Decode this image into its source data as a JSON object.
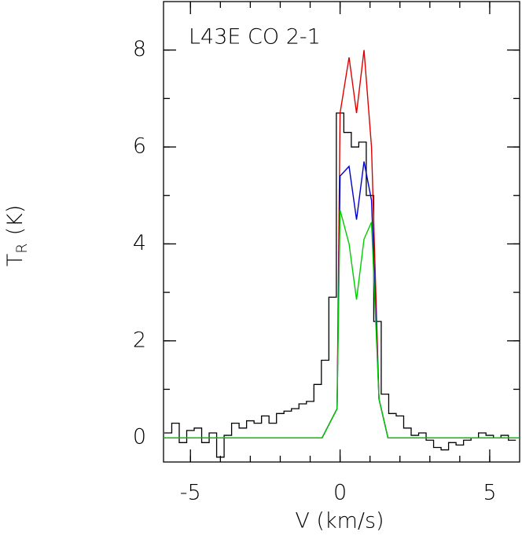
{
  "chart_data": {
    "type": "line",
    "title": "L43E CO 2-1",
    "xlabel": "V (km/s)",
    "ylabel": {
      "text": "T",
      "subscript": "R",
      "suffix": "(K)"
    },
    "xlim": [
      -5.9,
      6.0
    ],
    "ylim": [
      -0.5,
      9.0
    ],
    "xticks": [
      -5,
      0,
      5
    ],
    "yticks": [
      0,
      2,
      4,
      6,
      8
    ],
    "xminor_ticks": [
      -5,
      -4,
      -3,
      -2,
      -1,
      0,
      1,
      2,
      3,
      4,
      5
    ],
    "yminor_ticks": [
      0,
      1,
      2,
      3,
      4,
      5,
      6,
      7,
      8
    ],
    "observed": {
      "color": "#000000",
      "style": "steps",
      "x": [
        -5.75,
        -5.5,
        -5.25,
        -5.0,
        -4.75,
        -4.5,
        -4.25,
        -4.0,
        -3.75,
        -3.5,
        -3.25,
        -3.0,
        -2.75,
        -2.5,
        -2.25,
        -2.0,
        -1.75,
        -1.5,
        -1.25,
        -1.0,
        -0.75,
        -0.5,
        -0.25,
        0.0,
        0.25,
        0.5,
        0.75,
        1.0,
        1.25,
        1.5,
        1.75,
        2.0,
        2.25,
        2.5,
        2.75,
        3.0,
        3.25,
        3.5,
        3.75,
        4.0,
        4.25,
        4.5,
        4.75,
        5.0,
        5.25,
        5.5,
        5.75
      ],
      "values": [
        0.1,
        0.3,
        -0.1,
        0.15,
        0.2,
        -0.1,
        0.1,
        -0.4,
        0.05,
        0.3,
        0.2,
        0.35,
        0.3,
        0.45,
        0.3,
        0.5,
        0.55,
        0.6,
        0.7,
        0.75,
        1.1,
        1.6,
        2.9,
        6.7,
        6.3,
        6.0,
        6.1,
        5.0,
        2.4,
        0.9,
        0.5,
        0.45,
        0.2,
        0.05,
        0.1,
        -0.05,
        -0.2,
        -0.25,
        -0.1,
        -0.15,
        -0.05,
        0.0,
        0.1,
        0.05,
        0.0,
        0.05,
        -0.05
      ]
    },
    "x": [
      -5.9,
      -0.6,
      -0.1,
      0.0,
      0.3,
      0.55,
      0.8,
      1.05,
      1.3,
      1.6,
      6.0
    ],
    "series": [
      {
        "color": "#e00000",
        "values": [
          0,
          0,
          0.6,
          6.7,
          7.85,
          6.7,
          8.0,
          6.0,
          0.8,
          0,
          0
        ]
      },
      {
        "color": "#0000cc",
        "values": [
          0,
          0,
          0.6,
          5.4,
          5.6,
          4.5,
          5.7,
          4.9,
          0.8,
          0,
          0
        ]
      },
      {
        "color": "#00cc00",
        "values": [
          0,
          0,
          0.6,
          4.7,
          4.0,
          2.85,
          4.1,
          4.45,
          0.8,
          0,
          0
        ]
      }
    ]
  }
}
